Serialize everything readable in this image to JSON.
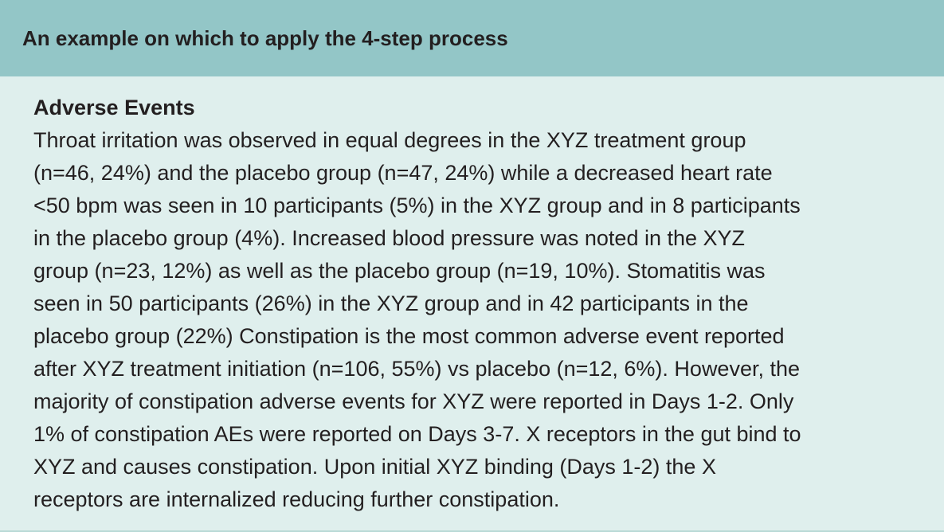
{
  "header": {
    "title": "An example on which to apply the 4-step process"
  },
  "body": {
    "heading": "Adverse Events",
    "lines": [
      "Throat irritation was observed in equal degrees in the XYZ treatment group",
      "(n=46, 24%) and the placebo group (n=47, 24%) while a decreased heart rate",
      "<50 bpm was seen in 10 participants (5%) in the XYZ group and in 8 participants",
      "in the placebo group (4%). Increased blood pressure was noted in the XYZ",
      "group (n=23, 12%) as well as the placebo group (n=19, 10%). Stomatitis was",
      "seen in 50 participants (26%) in the XYZ group and in 42 participants in the",
      "placebo group (22%) Constipation is the most common adverse event reported",
      "after XYZ treatment initiation (n=106, 55%) vs placebo (n=12, 6%). However, the",
      "majority of constipation adverse events for XYZ were reported in Days 1-2. Only",
      "1% of constipation AEs were reported on Days 3-7. X receptors in the gut bind to",
      "XYZ and causes constipation. Upon initial XYZ binding (Days 1-2) the X",
      "receptors are internalized reducing further constipation."
    ]
  }
}
